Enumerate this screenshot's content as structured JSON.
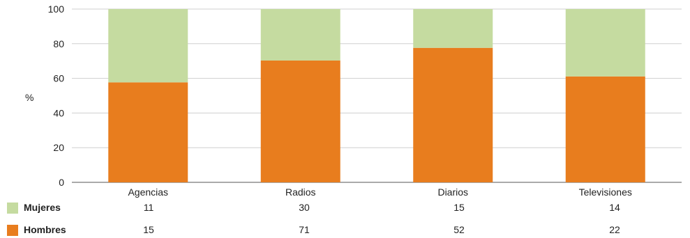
{
  "chart_data": {
    "type": "bar",
    "stacked": true,
    "ylabel": "%",
    "ylim": [
      0,
      100
    ],
    "yticks": [
      0,
      20,
      40,
      60,
      80,
      100
    ],
    "grid": true,
    "categories": [
      "Agencias",
      "Radios",
      "Diarios",
      "Televisiones"
    ],
    "series": [
      {
        "name": "Hombres",
        "color": "#e87d1e",
        "values": [
          15,
          71,
          52,
          22
        ]
      },
      {
        "name": "Mujeres",
        "color": "#c5dba0",
        "values": [
          11,
          30,
          15,
          14
        ]
      }
    ]
  },
  "table": {
    "rows": [
      {
        "name": "Mujeres",
        "color": "#c5dba0",
        "values": [
          "11",
          "30",
          "15",
          "14"
        ]
      },
      {
        "name": "Hombres",
        "color": "#e87d1e",
        "values": [
          "15",
          "71",
          "52",
          "22"
        ]
      }
    ]
  }
}
